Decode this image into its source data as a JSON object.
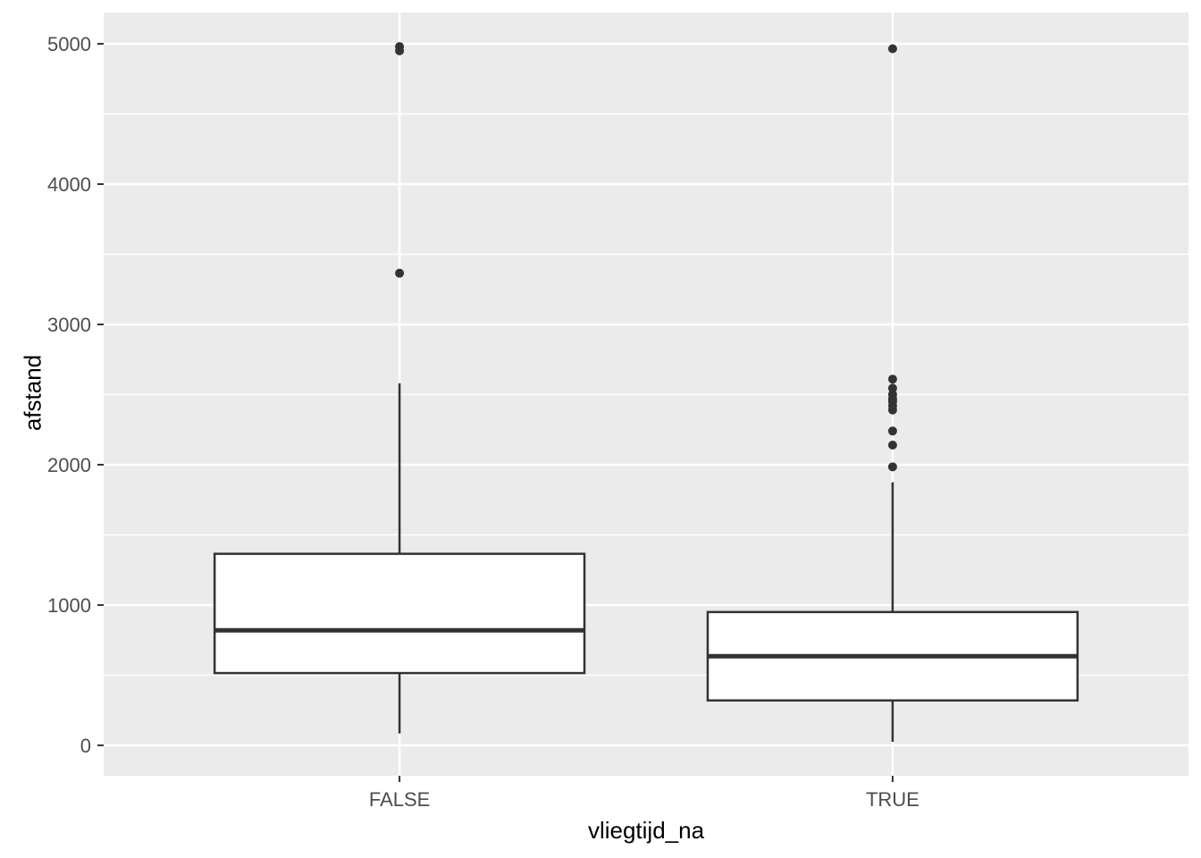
{
  "figure": {
    "x_axis_title": "vliegtijd_na",
    "y_axis_title": "afstand"
  },
  "chart_data": {
    "type": "boxplot",
    "title": "",
    "xlabel": "vliegtijd_na",
    "ylabel": "afstand",
    "categories": [
      "FALSE",
      "TRUE"
    ],
    "y_ticks": [
      0,
      1000,
      2000,
      3000,
      4000,
      5000
    ],
    "y_minor_ticks": [
      500,
      1500,
      2500,
      3500,
      4500
    ],
    "ylim": [
      -217,
      5223
    ],
    "grid": true,
    "legend": false,
    "orientation": "vertical",
    "series": [
      {
        "category": "FALSE",
        "whisker_low": 85,
        "q1": 515,
        "median": 820,
        "q3": 1365,
        "whisker_high": 2580,
        "outliers": [
          3365,
          4950,
          4980
        ]
      },
      {
        "category": "TRUE",
        "whisker_low": 25,
        "q1": 320,
        "median": 635,
        "q3": 950,
        "whisker_high": 1875,
        "outliers": [
          1985,
          2140,
          2240,
          2390,
          2420,
          2450,
          2470,
          2500,
          2545,
          2610,
          4965
        ]
      }
    ],
    "colors": {
      "panel_background": "#EBEBEB",
      "gridline": "#FFFFFF",
      "box_fill": "#FFFFFF",
      "box_stroke": "#333333",
      "outlier": "#333333",
      "tick_mark": "#333333",
      "tick_label_text": "#4D4D4D",
      "axis_title_text": "#000000",
      "figure_background": "#FFFFFF"
    }
  }
}
